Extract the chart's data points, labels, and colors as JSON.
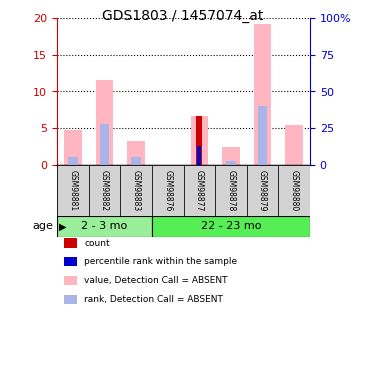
{
  "title": "GDS1803 / 1457074_at",
  "samples": [
    "GSM98881",
    "GSM98882",
    "GSM98883",
    "GSM98876",
    "GSM98877",
    "GSM98878",
    "GSM98879",
    "GSM98880"
  ],
  "group1_count": 3,
  "group2_count": 5,
  "group1_label": "2 - 3 mo",
  "group2_label": "22 - 23 mo",
  "group1_color": "#99ee99",
  "group2_color": "#55ee55",
  "value_absent": [
    4.8,
    11.5,
    3.2,
    0.0,
    6.6,
    2.5,
    19.2,
    5.4
  ],
  "rank_absent_pct": [
    5.5,
    28.0,
    5.5,
    0.0,
    0.0,
    2.5,
    40.0,
    0.0
  ],
  "count_value": [
    0.0,
    0.0,
    0.0,
    0.0,
    6.6,
    0.0,
    0.0,
    0.0
  ],
  "rank_value_pct": [
    0.0,
    0.0,
    0.0,
    0.0,
    13.0,
    0.0,
    0.0,
    0.0
  ],
  "ylim_left": [
    0,
    20
  ],
  "ylim_right": [
    0,
    100
  ],
  "yticks_left": [
    0,
    5,
    10,
    15,
    20
  ],
  "yticks_right": [
    0,
    25,
    50,
    75,
    100
  ],
  "yticklabels_right": [
    "0",
    "25",
    "50",
    "75",
    "100%"
  ],
  "color_value_absent": "#ffb6c1",
  "color_rank_absent": "#aab4e8",
  "color_count": "#cc0000",
  "color_rank": "#0000cc",
  "tick_color_left": "#cc0000",
  "tick_color_right": "#0000cc"
}
